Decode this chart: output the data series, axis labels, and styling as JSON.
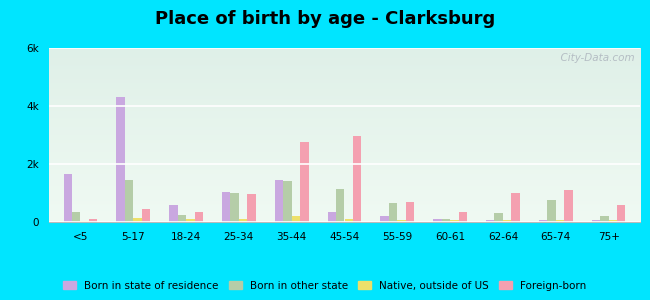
{
  "title": "Place of birth by age - Clarksburg",
  "categories": [
    "<5",
    "5-17",
    "18-24",
    "25-34",
    "35-44",
    "45-54",
    "55-59",
    "60-61",
    "62-64",
    "65-74",
    "75+"
  ],
  "series": {
    "Born in state of residence": [
      1650,
      4300,
      600,
      1050,
      1450,
      350,
      200,
      100,
      80,
      80,
      80
    ],
    "Born in other state": [
      350,
      1450,
      250,
      1000,
      1400,
      1150,
      650,
      120,
      300,
      750,
      200
    ],
    "Native, outside of US": [
      50,
      150,
      100,
      100,
      200,
      100,
      80,
      80,
      80,
      80,
      80
    ],
    "Foreign-born": [
      100,
      450,
      350,
      950,
      2750,
      2950,
      700,
      350,
      1000,
      1100,
      600
    ]
  },
  "colors": {
    "Born in state of residence": "#c9a8e0",
    "Born in other state": "#b5cda8",
    "Native, outside of US": "#ede06a",
    "Foreign-born": "#f4a0b0"
  },
  "ylim": [
    0,
    6000
  ],
  "yticks": [
    0,
    2000,
    4000,
    6000
  ],
  "ytick_labels": [
    "0",
    "2k",
    "4k",
    "6k"
  ],
  "outer_bg": "#00e5ff",
  "plot_bg_top": "#d6efe0",
  "plot_bg_bottom": "#f5fff8",
  "bar_width": 0.16,
  "title_fontsize": 13,
  "watermark": "  City-Data.com"
}
